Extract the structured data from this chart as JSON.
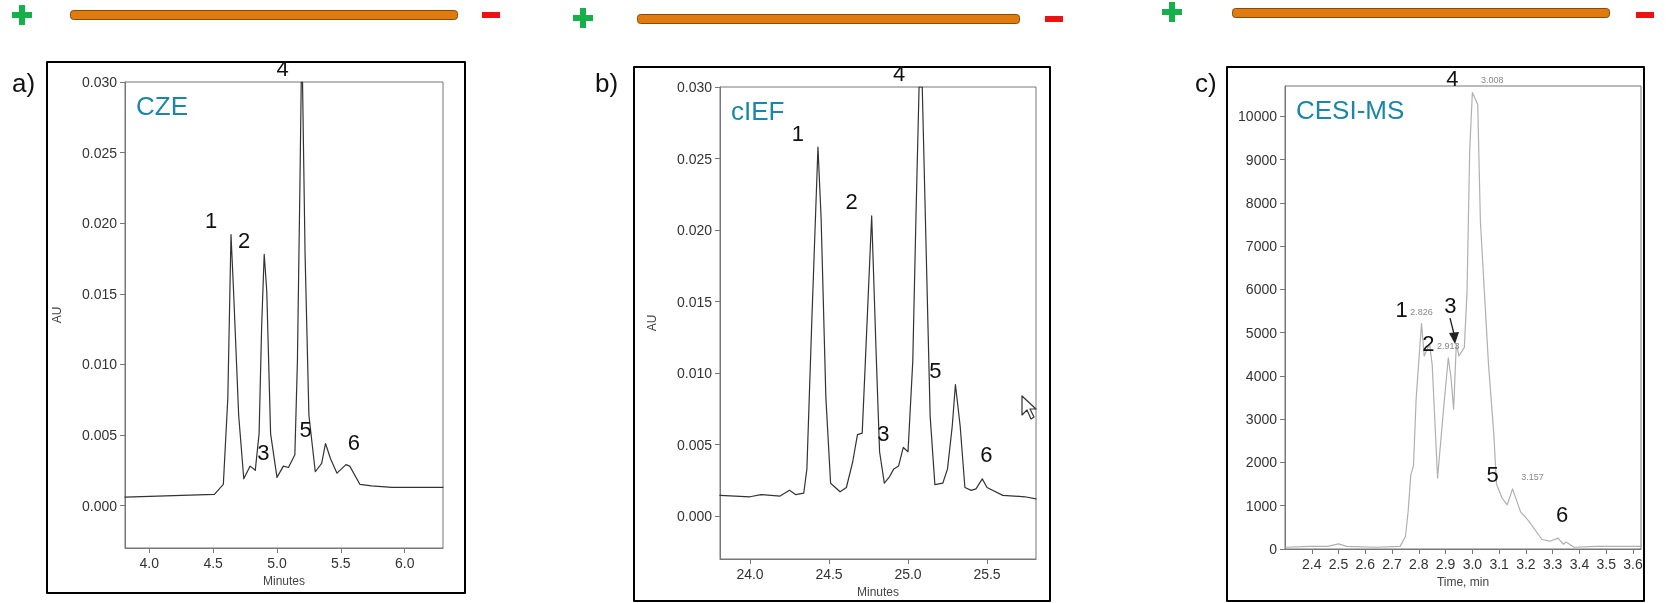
{
  "chart_data": [
    {
      "type": "line",
      "title": "CZE",
      "xlabel": "Minutes",
      "ylabel": "AU",
      "grid": false,
      "marker": "none",
      "line_style": "solid",
      "xlim": [
        3.81,
        6.3
      ],
      "ylim": [
        -0.003,
        0.03
      ],
      "xticks": [
        {
          "value": 4,
          "label": "4.0"
        },
        4.5,
        {
          "value": 5,
          "label": "5.0"
        },
        5.5,
        {
          "value": 6,
          "label": "6.0"
        }
      ],
      "yticks": [
        {
          "value": 0,
          "label": "0.000"
        },
        0.005,
        {
          "value": 0.01,
          "label": "0.010"
        },
        0.015,
        {
          "value": 0.02,
          "label": "0.020"
        },
        0.025,
        {
          "value": 0.03,
          "label": "0.030"
        }
      ],
      "x": [
        3.81,
        4.51,
        4.58,
        4.615,
        4.64,
        4.66,
        4.7,
        4.74,
        4.79,
        4.83,
        4.86,
        4.88,
        4.9,
        4.92,
        4.95,
        5.0,
        5.05,
        5.09,
        5.14,
        5.16,
        5.18,
        5.19,
        5.2,
        5.22,
        5.25,
        5.3,
        5.35,
        5.38,
        5.42,
        5.47,
        5.54,
        5.57,
        5.65,
        5.74,
        5.9,
        6.3
      ],
      "series": [
        {
          "color": "#333333",
          "values": [
            0.0006,
            0.0008,
            0.0015,
            0.0076,
            0.0192,
            0.0152,
            0.0064,
            0.0019,
            0.0028,
            0.0025,
            0.0051,
            0.0127,
            0.0178,
            0.0152,
            0.0051,
            0.002,
            0.0028,
            0.0027,
            0.0036,
            0.0102,
            0.0229,
            0.03,
            0.03,
            0.0178,
            0.0064,
            0.0024,
            0.003,
            0.0044,
            0.0033,
            0.0023,
            0.0029,
            0.0028,
            0.0015,
            0.0014,
            0.0013,
            0.0013
          ]
        }
      ],
      "annotations": [
        "a)",
        {
          "text": "1",
          "x": 4.64,
          "y": 0.0192
        },
        {
          "text": "2",
          "x": 4.9,
          "y": 0.0178
        },
        {
          "text": "3",
          "x": 5.05,
          "y": 0.0028
        },
        {
          "text": "4",
          "x": 5.2,
          "y": 0.03
        },
        {
          "text": "5",
          "x": 5.38,
          "y": 0.0044
        },
        {
          "text": "6",
          "x": 5.57,
          "y": 0.0028
        }
      ]
    },
    {
      "type": "line",
      "title": "cIEF",
      "xlabel": "Minutes",
      "ylabel": "AU",
      "grid": false,
      "marker": "none",
      "line_style": "solid",
      "xlim": [
        23.81,
        25.81
      ],
      "ylim": [
        -0.003,
        0.03
      ],
      "xticks": [
        {
          "value": 24,
          "label": "24.0"
        },
        24.5,
        {
          "value": 25,
          "label": "25.0"
        },
        25.5
      ],
      "yticks": [
        {
          "value": 0,
          "label": "0.000"
        },
        0.005,
        {
          "value": 0.01,
          "label": "0.010"
        },
        0.015,
        {
          "value": 0.02,
          "label": "0.020"
        },
        0.025,
        {
          "value": 0.03,
          "label": "0.030"
        }
      ],
      "x": [
        23.81,
        24.0,
        24.07,
        24.19,
        24.25,
        24.29,
        24.34,
        24.36,
        24.39,
        24.43,
        24.45,
        24.48,
        24.51,
        24.57,
        24.61,
        24.65,
        24.68,
        24.71,
        24.73,
        24.77,
        24.8,
        24.82,
        24.85,
        24.88,
        24.91,
        24.94,
        24.97,
        25.0,
        25.03,
        25.05,
        25.07,
        25.09,
        25.11,
        25.14,
        25.17,
        25.22,
        25.25,
        25.28,
        25.3,
        25.33,
        25.36,
        25.4,
        25.43,
        25.47,
        25.5,
        25.6,
        25.74,
        25.81
      ],
      "series": [
        {
          "color": "#333333",
          "values": [
            0.00145,
            0.00135,
            0.0015,
            0.0014,
            0.0018,
            0.0015,
            0.0016,
            0.0033,
            0.0133,
            0.0258,
            0.0208,
            0.0083,
            0.0023,
            0.0017,
            0.002,
            0.0038,
            0.0057,
            0.0058,
            0.0108,
            0.021,
            0.0108,
            0.0045,
            0.0023,
            0.0027,
            0.0033,
            0.0035,
            0.0048,
            0.0045,
            0.0108,
            0.0208,
            0.03,
            0.03,
            0.0208,
            0.007,
            0.0022,
            0.0023,
            0.0033,
            0.0063,
            0.0092,
            0.0063,
            0.002,
            0.0018,
            0.0019,
            0.0026,
            0.002,
            0.00145,
            0.00135,
            0.0012
          ]
        }
      ],
      "annotations": [
        "b)",
        {
          "text": "1",
          "x": 24.43,
          "y": 0.0258
        },
        {
          "text": "2",
          "x": 24.77,
          "y": 0.021
        },
        {
          "text": "3",
          "x": 24.97,
          "y": 0.0048
        },
        {
          "text": "4",
          "x": 25.07,
          "y": 0.03
        },
        {
          "text": "5",
          "x": 25.3,
          "y": 0.0092
        },
        {
          "text": "6",
          "x": 25.47,
          "y": 0.0026
        }
      ]
    },
    {
      "type": "line",
      "title": "CESI-MS",
      "xlabel": "Time, min",
      "grid": false,
      "marker": "none",
      "line_style": "solid",
      "xlim": [
        2.3,
        3.63
      ],
      "ylim": [
        0,
        10700
      ],
      "xticks": [
        2.4,
        2.5,
        2.6,
        2.7,
        2.8,
        2.9,
        {
          "value": 3,
          "label": "3.0"
        },
        3.1,
        3.2,
        3.3,
        3.4,
        3.5,
        3.6
      ],
      "yticks": [
        0,
        1000,
        2000,
        3000,
        4000,
        5000,
        6000,
        7000,
        8000,
        9000,
        10000
      ],
      "x": [
        2.3,
        2.39,
        2.46,
        2.5,
        2.53,
        2.64,
        2.73,
        2.75,
        2.76,
        2.77,
        2.78,
        2.79,
        2.81,
        2.82,
        2.84,
        2.85,
        2.87,
        2.89,
        2.91,
        2.92,
        2.93,
        2.94,
        2.95,
        2.97,
        2.98,
        2.99,
        3.0,
        3.02,
        3.03,
        3.06,
        3.08,
        3.09,
        3.11,
        3.13,
        3.15,
        3.18,
        3.21,
        3.26,
        3.29,
        3.32,
        3.34,
        3.35,
        3.38,
        3.46,
        3.63
      ],
      "series": [
        {
          "color": "#b0b0b0",
          "values": [
            40,
            60,
            60,
            120,
            60,
            40,
            60,
            290,
            860,
            1720,
            1920,
            3480,
            5210,
            4460,
            4740,
            4250,
            1640,
            3070,
            4420,
            3970,
            3230,
            4740,
            4460,
            4660,
            5930,
            9200,
            10550,
            10270,
            7570,
            4290,
            2660,
            1510,
            1190,
            1020,
            1390,
            860,
            650,
            220,
            180,
            250,
            110,
            160,
            40,
            60,
            60
          ]
        }
      ],
      "annotations": [
        "c)",
        {
          "text": "1",
          "x": 2.81,
          "y": 5210
        },
        {
          "text": "2",
          "x": 2.91,
          "y": 4420
        },
        {
          "text": "3",
          "x": 2.94,
          "y": 4740
        },
        {
          "text": "4",
          "x": 3.0,
          "y": 10550
        },
        {
          "text": "5",
          "x": 3.15,
          "y": 1390
        },
        {
          "text": "6",
          "x": 3.32,
          "y": 250
        },
        {
          "text": "2.826",
          "x": 2.81,
          "y": 5210
        },
        {
          "text": "2.913",
          "x": 2.91,
          "y": 4420
        },
        {
          "text": "3.008",
          "x": 3.0,
          "y": 10550
        },
        {
          "text": "3.157",
          "x": 3.15,
          "y": 1390
        }
      ]
    }
  ]
}
